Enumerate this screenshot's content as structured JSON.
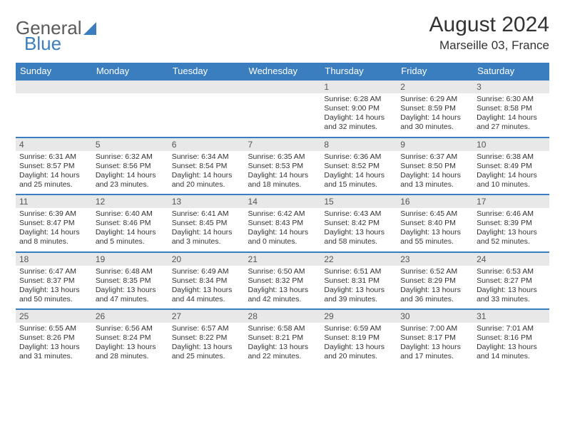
{
  "logo": {
    "part1": "General",
    "part2": "Blue"
  },
  "title": "August 2024",
  "location": "Marseille 03, France",
  "colors": {
    "header_bg": "#3b7ebf",
    "header_text": "#ffffff",
    "daynum_bg": "#e8e8e8",
    "row_border": "#3b7ebf",
    "body_text": "#333333"
  },
  "fonts": {
    "title_size_pt": 22,
    "location_size_pt": 13,
    "dayhead_size_pt": 10,
    "cell_size_pt": 8
  },
  "calendar": {
    "type": "table",
    "columns": [
      "Sunday",
      "Monday",
      "Tuesday",
      "Wednesday",
      "Thursday",
      "Friday",
      "Saturday"
    ],
    "weeks": [
      [
        {
          "day": "",
          "sunrise": "",
          "sunset": "",
          "daylight1": "",
          "daylight2": ""
        },
        {
          "day": "",
          "sunrise": "",
          "sunset": "",
          "daylight1": "",
          "daylight2": ""
        },
        {
          "day": "",
          "sunrise": "",
          "sunset": "",
          "daylight1": "",
          "daylight2": ""
        },
        {
          "day": "",
          "sunrise": "",
          "sunset": "",
          "daylight1": "",
          "daylight2": ""
        },
        {
          "day": "1",
          "sunrise": "Sunrise: 6:28 AM",
          "sunset": "Sunset: 9:00 PM",
          "daylight1": "Daylight: 14 hours",
          "daylight2": "and 32 minutes."
        },
        {
          "day": "2",
          "sunrise": "Sunrise: 6:29 AM",
          "sunset": "Sunset: 8:59 PM",
          "daylight1": "Daylight: 14 hours",
          "daylight2": "and 30 minutes."
        },
        {
          "day": "3",
          "sunrise": "Sunrise: 6:30 AM",
          "sunset": "Sunset: 8:58 PM",
          "daylight1": "Daylight: 14 hours",
          "daylight2": "and 27 minutes."
        }
      ],
      [
        {
          "day": "4",
          "sunrise": "Sunrise: 6:31 AM",
          "sunset": "Sunset: 8:57 PM",
          "daylight1": "Daylight: 14 hours",
          "daylight2": "and 25 minutes."
        },
        {
          "day": "5",
          "sunrise": "Sunrise: 6:32 AM",
          "sunset": "Sunset: 8:56 PM",
          "daylight1": "Daylight: 14 hours",
          "daylight2": "and 23 minutes."
        },
        {
          "day": "6",
          "sunrise": "Sunrise: 6:34 AM",
          "sunset": "Sunset: 8:54 PM",
          "daylight1": "Daylight: 14 hours",
          "daylight2": "and 20 minutes."
        },
        {
          "day": "7",
          "sunrise": "Sunrise: 6:35 AM",
          "sunset": "Sunset: 8:53 PM",
          "daylight1": "Daylight: 14 hours",
          "daylight2": "and 18 minutes."
        },
        {
          "day": "8",
          "sunrise": "Sunrise: 6:36 AM",
          "sunset": "Sunset: 8:52 PM",
          "daylight1": "Daylight: 14 hours",
          "daylight2": "and 15 minutes."
        },
        {
          "day": "9",
          "sunrise": "Sunrise: 6:37 AM",
          "sunset": "Sunset: 8:50 PM",
          "daylight1": "Daylight: 14 hours",
          "daylight2": "and 13 minutes."
        },
        {
          "day": "10",
          "sunrise": "Sunrise: 6:38 AM",
          "sunset": "Sunset: 8:49 PM",
          "daylight1": "Daylight: 14 hours",
          "daylight2": "and 10 minutes."
        }
      ],
      [
        {
          "day": "11",
          "sunrise": "Sunrise: 6:39 AM",
          "sunset": "Sunset: 8:47 PM",
          "daylight1": "Daylight: 14 hours",
          "daylight2": "and 8 minutes."
        },
        {
          "day": "12",
          "sunrise": "Sunrise: 6:40 AM",
          "sunset": "Sunset: 8:46 PM",
          "daylight1": "Daylight: 14 hours",
          "daylight2": "and 5 minutes."
        },
        {
          "day": "13",
          "sunrise": "Sunrise: 6:41 AM",
          "sunset": "Sunset: 8:45 PM",
          "daylight1": "Daylight: 14 hours",
          "daylight2": "and 3 minutes."
        },
        {
          "day": "14",
          "sunrise": "Sunrise: 6:42 AM",
          "sunset": "Sunset: 8:43 PM",
          "daylight1": "Daylight: 14 hours",
          "daylight2": "and 0 minutes."
        },
        {
          "day": "15",
          "sunrise": "Sunrise: 6:43 AM",
          "sunset": "Sunset: 8:42 PM",
          "daylight1": "Daylight: 13 hours",
          "daylight2": "and 58 minutes."
        },
        {
          "day": "16",
          "sunrise": "Sunrise: 6:45 AM",
          "sunset": "Sunset: 8:40 PM",
          "daylight1": "Daylight: 13 hours",
          "daylight2": "and 55 minutes."
        },
        {
          "day": "17",
          "sunrise": "Sunrise: 6:46 AM",
          "sunset": "Sunset: 8:39 PM",
          "daylight1": "Daylight: 13 hours",
          "daylight2": "and 52 minutes."
        }
      ],
      [
        {
          "day": "18",
          "sunrise": "Sunrise: 6:47 AM",
          "sunset": "Sunset: 8:37 PM",
          "daylight1": "Daylight: 13 hours",
          "daylight2": "and 50 minutes."
        },
        {
          "day": "19",
          "sunrise": "Sunrise: 6:48 AM",
          "sunset": "Sunset: 8:35 PM",
          "daylight1": "Daylight: 13 hours",
          "daylight2": "and 47 minutes."
        },
        {
          "day": "20",
          "sunrise": "Sunrise: 6:49 AM",
          "sunset": "Sunset: 8:34 PM",
          "daylight1": "Daylight: 13 hours",
          "daylight2": "and 44 minutes."
        },
        {
          "day": "21",
          "sunrise": "Sunrise: 6:50 AM",
          "sunset": "Sunset: 8:32 PM",
          "daylight1": "Daylight: 13 hours",
          "daylight2": "and 42 minutes."
        },
        {
          "day": "22",
          "sunrise": "Sunrise: 6:51 AM",
          "sunset": "Sunset: 8:31 PM",
          "daylight1": "Daylight: 13 hours",
          "daylight2": "and 39 minutes."
        },
        {
          "day": "23",
          "sunrise": "Sunrise: 6:52 AM",
          "sunset": "Sunset: 8:29 PM",
          "daylight1": "Daylight: 13 hours",
          "daylight2": "and 36 minutes."
        },
        {
          "day": "24",
          "sunrise": "Sunrise: 6:53 AM",
          "sunset": "Sunset: 8:27 PM",
          "daylight1": "Daylight: 13 hours",
          "daylight2": "and 33 minutes."
        }
      ],
      [
        {
          "day": "25",
          "sunrise": "Sunrise: 6:55 AM",
          "sunset": "Sunset: 8:26 PM",
          "daylight1": "Daylight: 13 hours",
          "daylight2": "and 31 minutes."
        },
        {
          "day": "26",
          "sunrise": "Sunrise: 6:56 AM",
          "sunset": "Sunset: 8:24 PM",
          "daylight1": "Daylight: 13 hours",
          "daylight2": "and 28 minutes."
        },
        {
          "day": "27",
          "sunrise": "Sunrise: 6:57 AM",
          "sunset": "Sunset: 8:22 PM",
          "daylight1": "Daylight: 13 hours",
          "daylight2": "and 25 minutes."
        },
        {
          "day": "28",
          "sunrise": "Sunrise: 6:58 AM",
          "sunset": "Sunset: 8:21 PM",
          "daylight1": "Daylight: 13 hours",
          "daylight2": "and 22 minutes."
        },
        {
          "day": "29",
          "sunrise": "Sunrise: 6:59 AM",
          "sunset": "Sunset: 8:19 PM",
          "daylight1": "Daylight: 13 hours",
          "daylight2": "and 20 minutes."
        },
        {
          "day": "30",
          "sunrise": "Sunrise: 7:00 AM",
          "sunset": "Sunset: 8:17 PM",
          "daylight1": "Daylight: 13 hours",
          "daylight2": "and 17 minutes."
        },
        {
          "day": "31",
          "sunrise": "Sunrise: 7:01 AM",
          "sunset": "Sunset: 8:16 PM",
          "daylight1": "Daylight: 13 hours",
          "daylight2": "and 14 minutes."
        }
      ]
    ]
  }
}
